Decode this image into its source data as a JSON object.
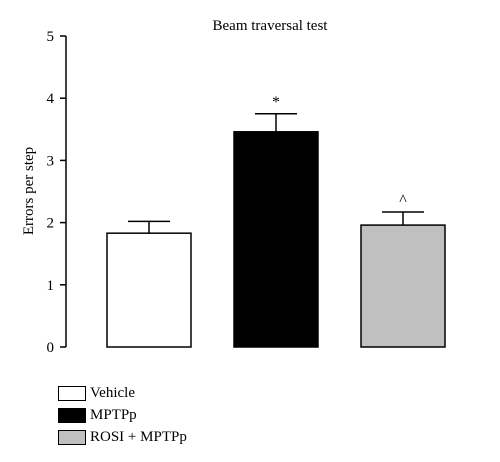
{
  "chart_data": {
    "type": "bar",
    "title": "Beam traversal test",
    "xlabel": "",
    "ylabel": "Errors per step",
    "ylim": [
      0,
      5
    ],
    "yticks": [
      "0",
      "1",
      "2",
      "3",
      "4",
      "5"
    ],
    "categories": [
      "Vehicle",
      "MPTPp",
      "ROSI + MPTPp"
    ],
    "values": [
      1.83,
      3.46,
      1.96
    ],
    "errors": [
      0.19,
      0.29,
      0.21
    ],
    "annotations": [
      "",
      "*",
      "^"
    ],
    "colors": [
      "#ffffff",
      "#000000",
      "#c0c0c0"
    ],
    "legend": {
      "placement": "bottom-left"
    },
    "grid": false
  }
}
